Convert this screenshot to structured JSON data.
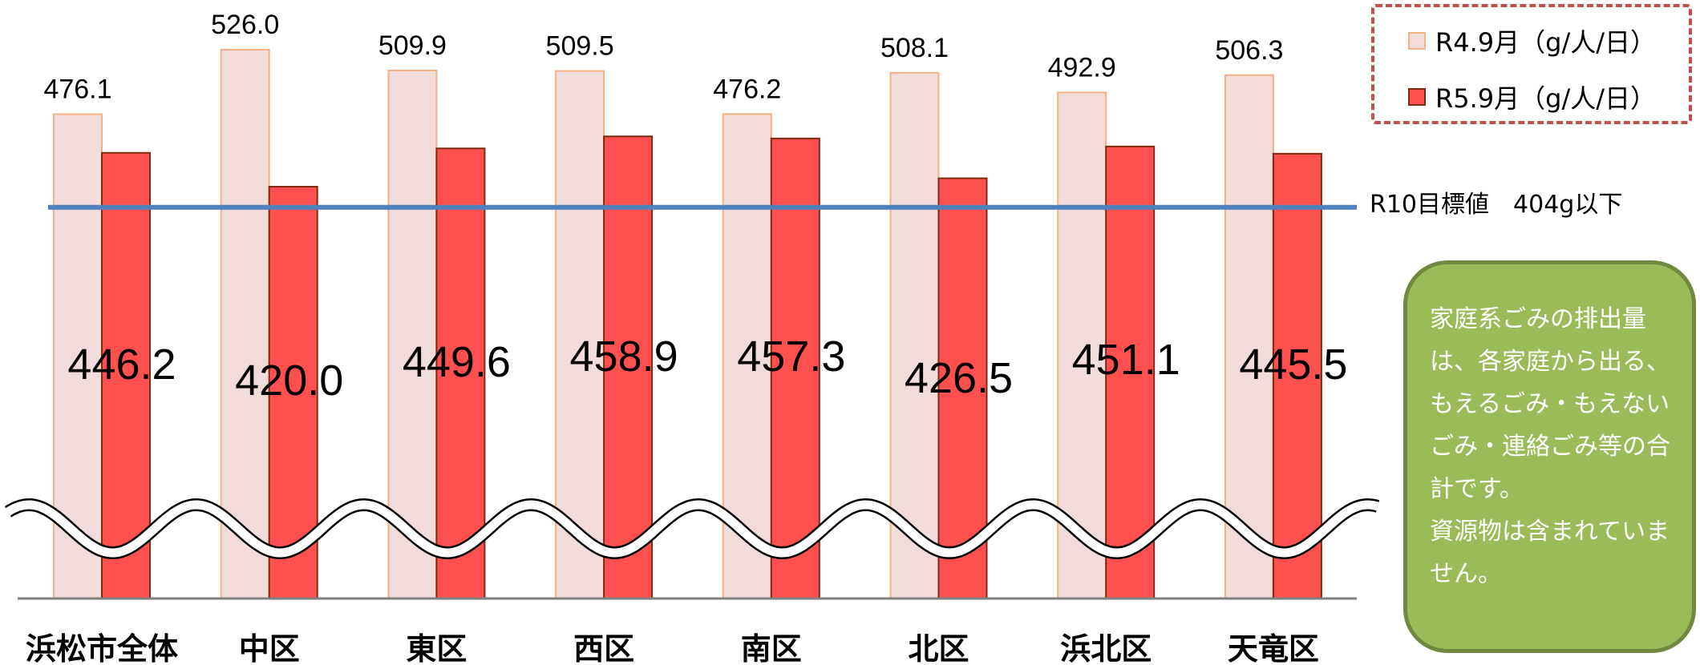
{
  "chart_data": {
    "type": "bar",
    "categories": [
      "浜松市全体",
      "中区",
      "東区",
      "西区",
      "南区",
      "北区",
      "浜北区",
      "天竜区"
    ],
    "series": [
      {
        "name": "R4.9月（g/人/日）",
        "values": [
          476.1,
          526.0,
          509.9,
          509.5,
          476.2,
          508.1,
          492.9,
          506.3
        ],
        "labels": [
          "476.1",
          "526.0",
          "509.9",
          "509.5",
          "476.2",
          "508.1",
          "492.9",
          "506.3"
        ],
        "color": "#f2dcdb"
      },
      {
        "name": "R5.9月（g/人/日）",
        "values": [
          446.2,
          420.0,
          449.6,
          458.9,
          457.3,
          426.5,
          451.1,
          445.5
        ],
        "labels": [
          "446.2",
          "420.0",
          "449.6",
          "458.9",
          "457.3",
          "426.5",
          "451.1",
          "445.5"
        ],
        "color": "#ff5050"
      }
    ],
    "target": {
      "value": 404,
      "label": "R10目標値　404g以下",
      "color": "#4f81bd"
    },
    "axis_break": true,
    "legend_position": "top-right"
  },
  "note": "家庭系ごみの排出量は、各家庭から出る、もえるごみ・もえないごみ・連絡ごみ等の合計です。\n資源物は含まれていません。",
  "colors": {
    "note_bg": "#9bbb59",
    "legend_border": "#c0504d",
    "baseline": "#7f7f7f"
  }
}
